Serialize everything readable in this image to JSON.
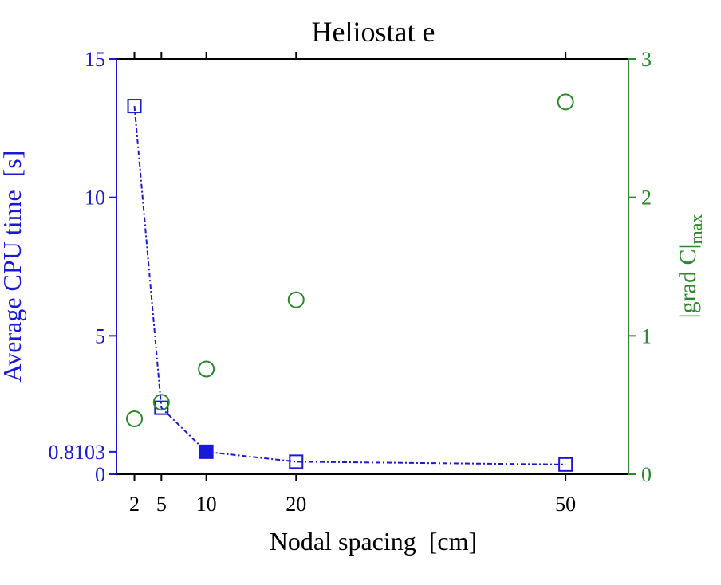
{
  "chart_data": {
    "type": "scatter",
    "title": "Heliostat e",
    "xlabel": "Nodal spacing  [cm]",
    "ylabel_left": "Average CPU time  [s]",
    "ylabel_right": "|grad C|",
    "ylabel_right_subscript": "max",
    "x_ticks": [
      2,
      5,
      10,
      20,
      50
    ],
    "x_tick_labels": [
      "2",
      "5",
      "10",
      "20",
      "50"
    ],
    "y_left_ticks": [
      0,
      0.8103,
      5,
      10,
      15
    ],
    "y_left_tick_labels": [
      "0",
      "0.8103",
      "5",
      "10",
      "15"
    ],
    "y_left_lim": [
      0,
      15
    ],
    "y_right_ticks": [
      0,
      1,
      2,
      3
    ],
    "y_right_tick_labels": [
      "0",
      "1",
      "2",
      "3"
    ],
    "y_right_lim": [
      0,
      3
    ],
    "grid": false,
    "colors": {
      "left_axis": "#1a1ad6",
      "right_axis": "#2a8a2a",
      "frame": "#000000"
    },
    "series": [
      {
        "axis": "left",
        "marker": "square",
        "line": "dash-dot",
        "x": [
          2,
          5,
          10,
          20,
          50
        ],
        "y": [
          13.3,
          2.4,
          0.8103,
          0.45,
          0.35
        ],
        "highlight_index": 2
      },
      {
        "axis": "right",
        "marker": "circle",
        "line": "none",
        "x": [
          2,
          5,
          10,
          20,
          50
        ],
        "y": [
          0.4,
          0.52,
          0.76,
          1.26,
          2.69
        ]
      }
    ]
  }
}
